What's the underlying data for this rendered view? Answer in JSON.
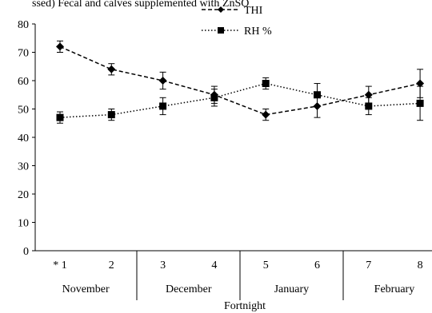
{
  "chart_data": {
    "type": "line",
    "top_clipped_text": "ssed) Fecal and calves supplemented with ZnSO",
    "x": [
      "* 1",
      "2",
      "3",
      "4",
      "5",
      "6",
      "7",
      "8"
    ],
    "groups": [
      "November",
      "December",
      "January",
      "February"
    ],
    "xlabel": "Fortnight",
    "ylabel": "",
    "ylim": [
      0,
      80
    ],
    "yticks": [
      0,
      10,
      20,
      30,
      40,
      50,
      60,
      70,
      80
    ],
    "legend_position": "top-center",
    "grid": false,
    "series": [
      {
        "name": "THI",
        "values": [
          72,
          64,
          60,
          55,
          48,
          51,
          55,
          59
        ],
        "errors": [
          2,
          2,
          3,
          3,
          2,
          4,
          3,
          5
        ],
        "marker": "diamond",
        "line_style": "dashed",
        "color": "#000000"
      },
      {
        "name": "RH %",
        "values": [
          47,
          48,
          51,
          54,
          59,
          55,
          51,
          52
        ],
        "errors": [
          2,
          2,
          3,
          3,
          2,
          4,
          3,
          6
        ],
        "marker": "square",
        "line_style": "dotted",
        "color": "#000000"
      }
    ]
  }
}
